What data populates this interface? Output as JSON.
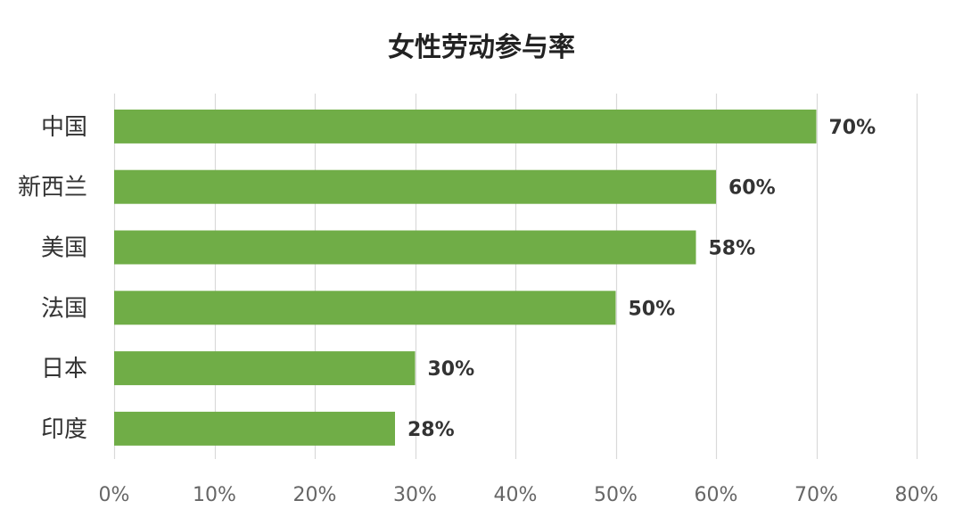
{
  "chart_data": {
    "type": "bar",
    "orientation": "horizontal",
    "title": "女性劳动参与率",
    "categories": [
      "中国",
      "新西兰",
      "美国",
      "法国",
      "日本",
      "印度"
    ],
    "values": [
      70,
      60,
      58,
      50,
      30,
      28
    ],
    "data_labels": [
      "70%",
      "60%",
      "58%",
      "50%",
      "30%",
      "28%"
    ],
    "xlim": [
      0,
      80
    ],
    "x_ticks": [
      0,
      10,
      20,
      30,
      40,
      50,
      60,
      70,
      80
    ],
    "x_tick_labels": [
      "0%",
      "10%",
      "20%",
      "30%",
      "40%",
      "50%",
      "60%",
      "70%",
      "80%"
    ],
    "xlabel": "",
    "ylabel": "",
    "grid": "vertical",
    "legend": "none",
    "bar_color": "#70ad47",
    "grid_color": "#d9d9d9"
  }
}
